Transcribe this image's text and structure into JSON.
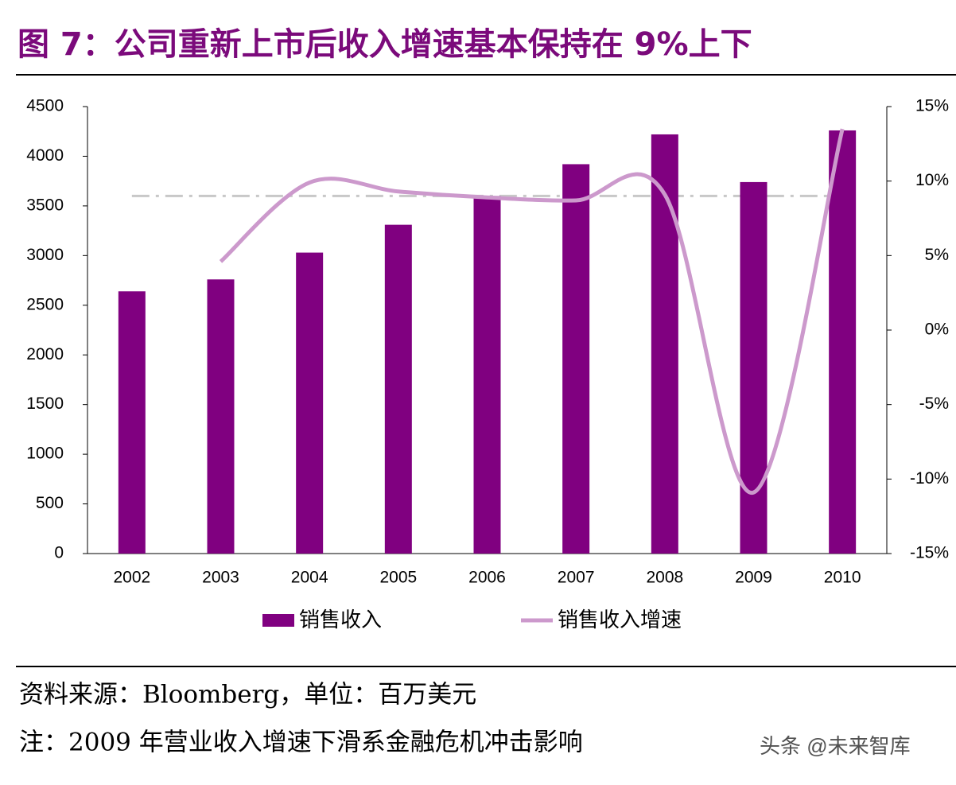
{
  "chart_data": {
    "type": "bar",
    "title": "图 7：公司重新上市后收入增速基本保持在 9%上下",
    "categories": [
      "2002",
      "2003",
      "2004",
      "2005",
      "2006",
      "2007",
      "2008",
      "2009",
      "2010"
    ],
    "series": [
      {
        "name": "销售收入",
        "type": "bar",
        "color": "#800080",
        "values": [
          2640,
          2760,
          3030,
          3310,
          3600,
          3920,
          4220,
          3740,
          4260
        ]
      },
      {
        "name": "销售收入增速",
        "type": "line",
        "axis": "y2",
        "color": "#cc99cc",
        "values": [
          null,
          4.6,
          9.9,
          9.3,
          8.9,
          8.7,
          9.1,
          -10.9,
          13.5
        ]
      }
    ],
    "reference_line": {
      "axis": "y2",
      "value": 9,
      "color": "#c8c8c8"
    },
    "ylim": [
      0,
      4500
    ],
    "yticks": [
      0,
      500,
      1000,
      1500,
      2000,
      2500,
      3000,
      3500,
      4000,
      4500
    ],
    "y2lim": [
      -15,
      15
    ],
    "y2ticks": [
      {
        "value": -15,
        "label": "-15%"
      },
      {
        "value": -10,
        "label": "-10%"
      },
      {
        "value": -5,
        "label": "-5%"
      },
      {
        "value": 0,
        "label": "0%"
      },
      {
        "value": 5,
        "label": "5%"
      },
      {
        "value": 10,
        "label": "10%"
      },
      {
        "value": 15,
        "label": "15%"
      }
    ],
    "legend": "bottom",
    "source": "资料来源：Bloomberg，单位：百万美元",
    "note": "注：2009 年营业收入增速下滑系金融危机冲击影响",
    "watermark": "头条 @未来智库"
  }
}
